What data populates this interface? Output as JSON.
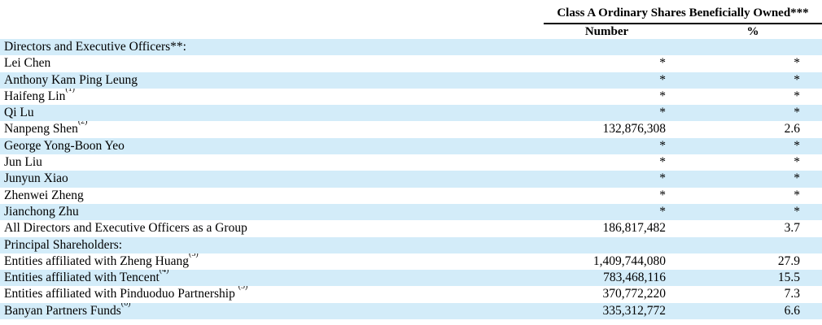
{
  "header": {
    "group_title": "Class A Ordinary Shares Beneficially Owned***",
    "col_number": "Number",
    "col_percent": "%"
  },
  "colors": {
    "row_shade": "#d3ecf9",
    "rule": "#000000",
    "text": "#000000"
  },
  "table": {
    "rows": [
      {
        "label": "Directors and Executive Officers**:",
        "sup": "",
        "number": "",
        "percent": "",
        "shaded": true
      },
      {
        "label": "Lei Chen",
        "sup": "",
        "number": "*",
        "percent": "*",
        "shaded": false
      },
      {
        "label": "Anthony Kam Ping Leung",
        "sup": "",
        "number": "*",
        "percent": "*",
        "shaded": true
      },
      {
        "label": "Haifeng Lin",
        "sup": "(1)",
        "number": "*",
        "percent": "*",
        "shaded": false
      },
      {
        "label": "Qi Lu",
        "sup": "",
        "number": "*",
        "percent": "*",
        "shaded": true
      },
      {
        "label": "Nanpeng Shen",
        "sup": "(2)",
        "number": "132,876,308",
        "percent": "2.6",
        "shaded": false
      },
      {
        "label": "George Yong-Boon Yeo",
        "sup": "",
        "number": "*",
        "percent": "*",
        "shaded": true
      },
      {
        "label": "Jun Liu",
        "sup": "",
        "number": "*",
        "percent": "*",
        "shaded": false
      },
      {
        "label": "Junyun Xiao",
        "sup": "",
        "number": "*",
        "percent": "*",
        "shaded": true
      },
      {
        "label": "Zhenwei Zheng",
        "sup": "",
        "number": "*",
        "percent": "*",
        "shaded": false
      },
      {
        "label": "Jianchong Zhu",
        "sup": "",
        "number": "*",
        "percent": "*",
        "shaded": true
      },
      {
        "label": "All Directors and Executive Officers as a Group",
        "sup": "",
        "number": "186,817,482",
        "percent": "3.7",
        "shaded": false
      },
      {
        "label": "Principal Shareholders:",
        "sup": "",
        "number": "",
        "percent": "",
        "shaded": true
      },
      {
        "label": "Entities affiliated with Zheng Huang",
        "sup": "(3)",
        "number": "1,409,744,080",
        "percent": "27.9",
        "shaded": false
      },
      {
        "label": "Entities affiliated with Tencent",
        "sup": "(4)",
        "number": "783,468,116",
        "percent": "15.5",
        "shaded": true
      },
      {
        "label": "Entities affiliated with Pinduoduo Partnership ",
        "sup": "(5)",
        "number": "370,772,220",
        "percent": "7.3",
        "shaded": false
      },
      {
        "label": "Banyan Partners Funds",
        "sup": "(6)",
        "number": "335,312,772",
        "percent": "6.6",
        "shaded": true
      }
    ]
  }
}
